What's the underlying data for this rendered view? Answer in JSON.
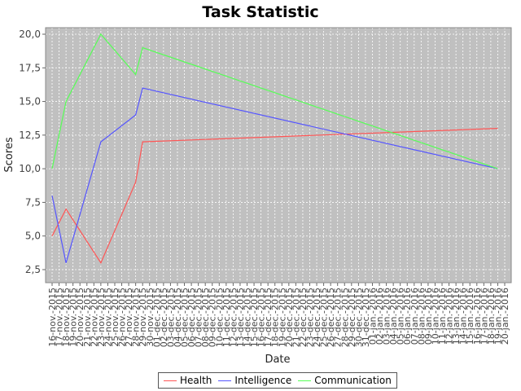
{
  "chart_data": {
    "type": "line",
    "title": "Task Statistic",
    "xlabel": "Date",
    "ylabel": "Scores",
    "x_ticks": [
      "16-nov.-2015",
      "17-nov.-2015",
      "18-nov.-2015",
      "19-nov.-2015",
      "20-nov.-2015",
      "21-nov.-2015",
      "22-nov.-2015",
      "23-nov.-2015",
      "24-nov.-2015",
      "25-nov.-2015",
      "26-nov.-2015",
      "27-nov.-2015",
      "28-nov.-2015",
      "29-nov.-2015",
      "30-nov.-2015",
      "01-dec.-2015",
      "02-dec.-2015",
      "03-dec.-2015",
      "04-dec.-2015",
      "05-dec.-2015",
      "06-dec.-2015",
      "07-dec.-2015",
      "08-dec.-2015",
      "09-dec.-2015",
      "10-dec.-2015",
      "11-dec.-2015",
      "12-dec.-2015",
      "13-dec.-2015",
      "14-dec.-2015",
      "15-dec.-2015",
      "16-dec.-2015",
      "17-dec.-2015",
      "18-dec.-2015",
      "19-dec.-2015",
      "20-dec.-2015",
      "21-dec.-2015",
      "22-dec.-2015",
      "23-dec.-2015",
      "24-dec.-2015",
      "25-dec.-2015",
      "26-dec.-2015",
      "27-dec.-2015",
      "28-dec.-2015",
      "29-dec.-2015",
      "30-dec.-2015",
      "31-dec.-2015",
      "01-jan.-2016",
      "02-jan.-2016",
      "03-jan.-2016",
      "04-jan.-2016",
      "05-jan.-2016",
      "06-jan.-2016",
      "07-jan.-2016",
      "08-jan.-2016",
      "09-jan.-2016",
      "10-jan.-2016",
      "11-jan.-2016",
      "12-jan.-2016",
      "13-jan.-2016",
      "14-jan.-2016",
      "15-jan.-2016",
      "16-jan.-2016",
      "17-jan.-2016",
      "18-jan.-2016",
      "19-jan.-2016",
      "20-jan.-2016"
    ],
    "y_ticks": [
      "2,5",
      "5,0",
      "7,5",
      "10,0",
      "12,5",
      "15,0",
      "17,5",
      "20,0"
    ],
    "ylim": [
      2.5,
      20.0
    ],
    "grid": true,
    "legend_position": "bottom",
    "series": [
      {
        "name": "Health",
        "color": "#ff5555",
        "points": [
          [
            "16-nov.-2015",
            5
          ],
          [
            "18-nov.-2015",
            7
          ],
          [
            "23-nov.-2015",
            3
          ],
          [
            "28-nov.-2015",
            9
          ],
          [
            "29-nov.-2015",
            12
          ],
          [
            "19-jan.-2016",
            13
          ],
          [
            "19-jan.-2016",
            13
          ]
        ]
      },
      {
        "name": "Intelligence",
        "color": "#5555ff",
        "points": [
          [
            "16-nov.-2015",
            8
          ],
          [
            "18-nov.-2015",
            3
          ],
          [
            "23-nov.-2015",
            12
          ],
          [
            "28-nov.-2015",
            14
          ],
          [
            "29-nov.-2015",
            16
          ],
          [
            "19-jan.-2016",
            10
          ],
          [
            "19-jan.-2016",
            10
          ]
        ]
      },
      {
        "name": "Communication",
        "color": "#55ff55",
        "points": [
          [
            "16-nov.-2015",
            10
          ],
          [
            "18-nov.-2015",
            15
          ],
          [
            "23-nov.-2015",
            20
          ],
          [
            "28-nov.-2015",
            17
          ],
          [
            "29-nov.-2015",
            19
          ],
          [
            "19-jan.-2016",
            10
          ],
          [
            "19-jan.-2016",
            10
          ]
        ]
      }
    ]
  }
}
